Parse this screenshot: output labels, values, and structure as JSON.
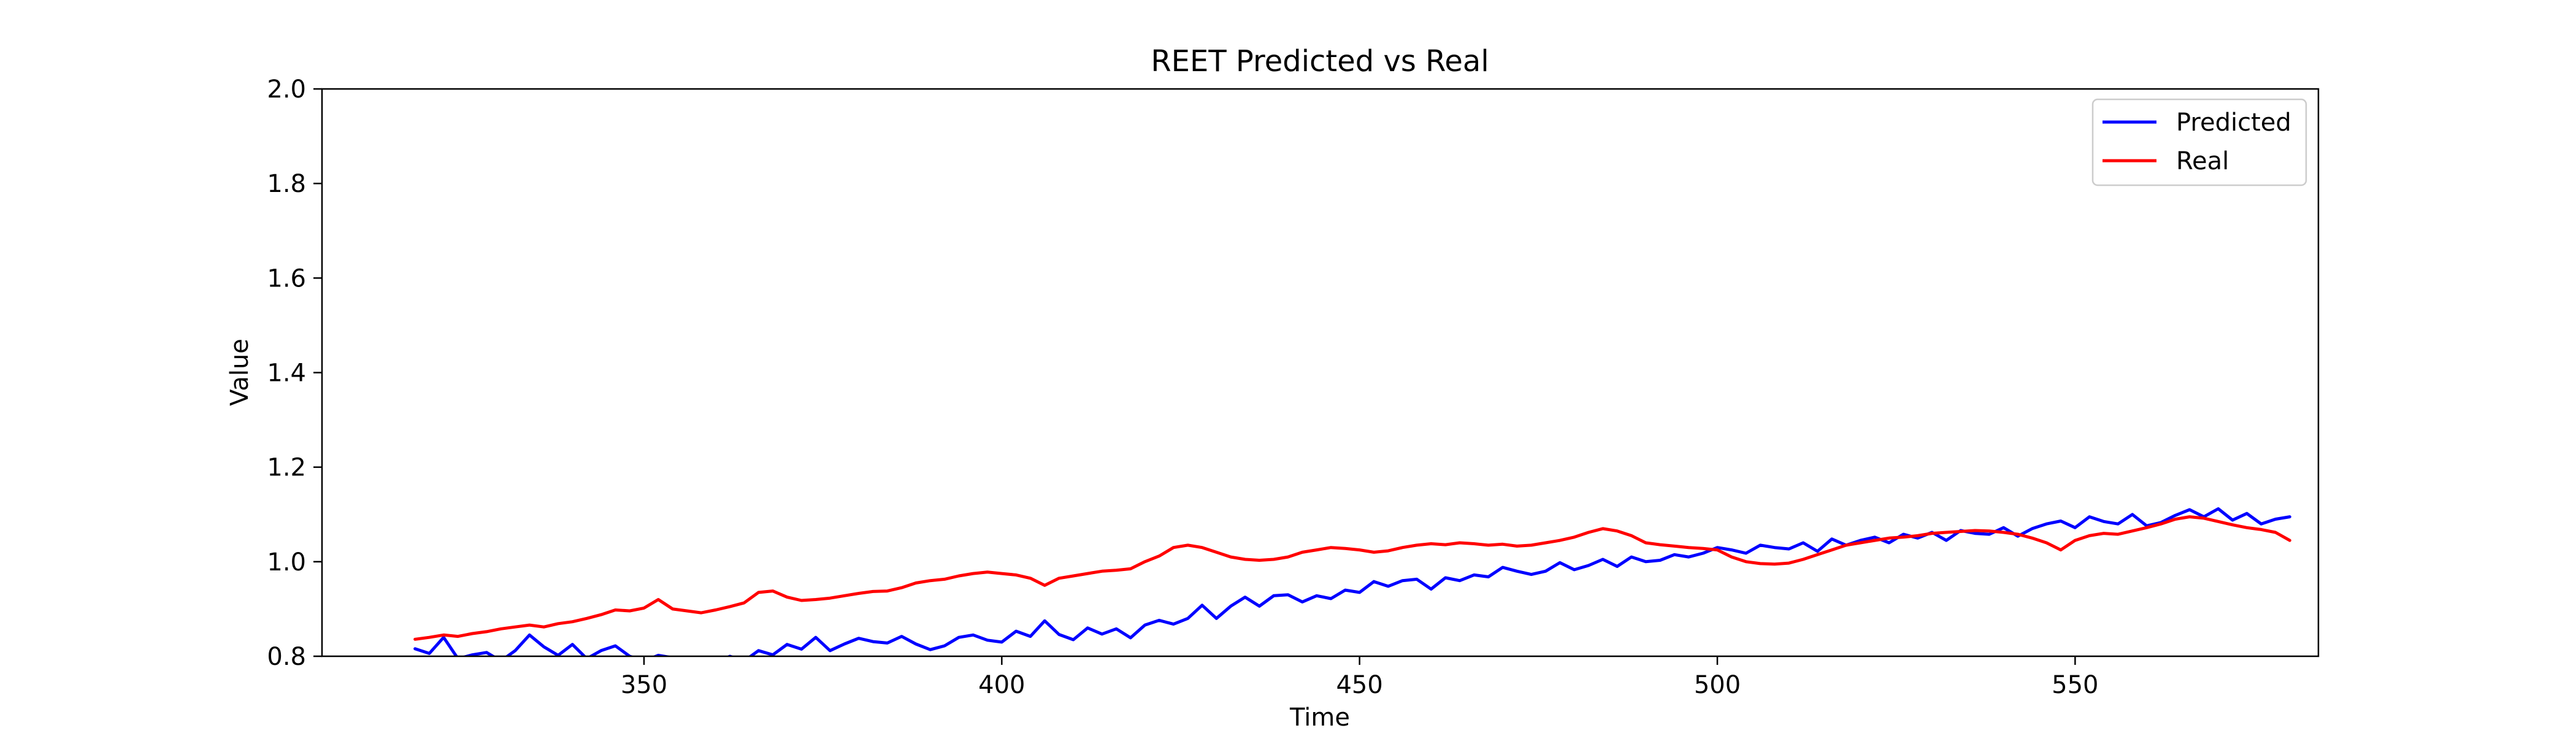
{
  "chart_data": {
    "type": "line",
    "title": "REET Predicted vs Real",
    "xlabel": "Time",
    "ylabel": "Value",
    "xlim": [
      305,
      584
    ],
    "ylim": [
      0.8,
      2.0
    ],
    "x_ticks": [
      350,
      400,
      450,
      500,
      550
    ],
    "y_ticks": [
      0.8,
      1.0,
      1.2,
      1.4,
      1.6,
      1.8,
      2.0
    ],
    "y_tick_labels": [
      "0.8",
      "1.0",
      "1.2",
      "1.4",
      "1.6",
      "1.8",
      "2.0"
    ],
    "legend_placement": "top-right",
    "grid": false,
    "x_start": 318,
    "x_end": 580,
    "series": [
      {
        "name": "Predicted",
        "color": "#0000ff",
        "points": [
          [
            318,
            0.816
          ],
          [
            320,
            0.806
          ],
          [
            322,
            0.84
          ],
          [
            324,
            0.795
          ],
          [
            326,
            0.803
          ],
          [
            328,
            0.808
          ],
          [
            330,
            0.79
          ],
          [
            332,
            0.812
          ],
          [
            334,
            0.845
          ],
          [
            336,
            0.82
          ],
          [
            338,
            0.802
          ],
          [
            340,
            0.825
          ],
          [
            342,
            0.795
          ],
          [
            344,
            0.812
          ],
          [
            346,
            0.822
          ],
          [
            348,
            0.8
          ],
          [
            350,
            0.79
          ],
          [
            352,
            0.802
          ],
          [
            354,
            0.797
          ],
          [
            356,
            0.787
          ],
          [
            358,
            0.798
          ],
          [
            360,
            0.786
          ],
          [
            362,
            0.8
          ],
          [
            364,
            0.79
          ],
          [
            366,
            0.812
          ],
          [
            368,
            0.803
          ],
          [
            370,
            0.825
          ],
          [
            372,
            0.815
          ],
          [
            374,
            0.84
          ],
          [
            376,
            0.812
          ],
          [
            378,
            0.826
          ],
          [
            380,
            0.838
          ],
          [
            382,
            0.831
          ],
          [
            384,
            0.828
          ],
          [
            386,
            0.842
          ],
          [
            388,
            0.826
          ],
          [
            390,
            0.814
          ],
          [
            392,
            0.822
          ],
          [
            394,
            0.84
          ],
          [
            396,
            0.845
          ],
          [
            398,
            0.834
          ],
          [
            400,
            0.83
          ],
          [
            402,
            0.853
          ],
          [
            404,
            0.842
          ],
          [
            406,
            0.875
          ],
          [
            408,
            0.846
          ],
          [
            410,
            0.835
          ],
          [
            412,
            0.86
          ],
          [
            414,
            0.847
          ],
          [
            416,
            0.858
          ],
          [
            418,
            0.839
          ],
          [
            420,
            0.866
          ],
          [
            422,
            0.876
          ],
          [
            424,
            0.868
          ],
          [
            426,
            0.88
          ],
          [
            428,
            0.908
          ],
          [
            430,
            0.88
          ],
          [
            432,
            0.906
          ],
          [
            434,
            0.925
          ],
          [
            436,
            0.906
          ],
          [
            438,
            0.928
          ],
          [
            440,
            0.93
          ],
          [
            442,
            0.915
          ],
          [
            444,
            0.928
          ],
          [
            446,
            0.922
          ],
          [
            448,
            0.94
          ],
          [
            450,
            0.935
          ],
          [
            452,
            0.958
          ],
          [
            454,
            0.948
          ],
          [
            456,
            0.96
          ],
          [
            458,
            0.963
          ],
          [
            460,
            0.942
          ],
          [
            462,
            0.966
          ],
          [
            464,
            0.96
          ],
          [
            466,
            0.972
          ],
          [
            468,
            0.968
          ],
          [
            470,
            0.988
          ],
          [
            472,
            0.98
          ],
          [
            474,
            0.973
          ],
          [
            476,
            0.98
          ],
          [
            478,
            0.998
          ],
          [
            480,
            0.983
          ],
          [
            482,
            0.992
          ],
          [
            484,
            1.005
          ],
          [
            486,
            0.99
          ],
          [
            488,
            1.01
          ],
          [
            490,
            1.0
          ],
          [
            492,
            1.003
          ],
          [
            494,
            1.015
          ],
          [
            496,
            1.01
          ],
          [
            498,
            1.018
          ],
          [
            500,
            1.03
          ],
          [
            502,
            1.025
          ],
          [
            504,
            1.018
          ],
          [
            506,
            1.035
          ],
          [
            508,
            1.03
          ],
          [
            510,
            1.027
          ],
          [
            512,
            1.04
          ],
          [
            514,
            1.022
          ],
          [
            516,
            1.048
          ],
          [
            518,
            1.035
          ],
          [
            520,
            1.045
          ],
          [
            522,
            1.052
          ],
          [
            524,
            1.04
          ],
          [
            526,
            1.058
          ],
          [
            528,
            1.05
          ],
          [
            530,
            1.062
          ],
          [
            532,
            1.045
          ],
          [
            534,
            1.066
          ],
          [
            536,
            1.06
          ],
          [
            538,
            1.058
          ],
          [
            540,
            1.072
          ],
          [
            542,
            1.054
          ],
          [
            544,
            1.07
          ],
          [
            546,
            1.08
          ],
          [
            548,
            1.086
          ],
          [
            550,
            1.072
          ],
          [
            552,
            1.095
          ],
          [
            554,
            1.085
          ],
          [
            556,
            1.08
          ],
          [
            558,
            1.1
          ],
          [
            560,
            1.076
          ],
          [
            562,
            1.083
          ],
          [
            564,
            1.098
          ],
          [
            566,
            1.11
          ],
          [
            568,
            1.095
          ],
          [
            570,
            1.112
          ],
          [
            572,
            1.088
          ],
          [
            574,
            1.102
          ],
          [
            576,
            1.08
          ],
          [
            578,
            1.09
          ],
          [
            580,
            1.095
          ]
        ]
      },
      {
        "name": "Real",
        "color": "#ff0000",
        "points": [
          [
            318,
            0.836
          ],
          [
            320,
            0.84
          ],
          [
            322,
            0.845
          ],
          [
            324,
            0.842
          ],
          [
            326,
            0.848
          ],
          [
            328,
            0.852
          ],
          [
            330,
            0.858
          ],
          [
            332,
            0.862
          ],
          [
            334,
            0.866
          ],
          [
            336,
            0.862
          ],
          [
            338,
            0.869
          ],
          [
            340,
            0.873
          ],
          [
            342,
            0.88
          ],
          [
            344,
            0.888
          ],
          [
            346,
            0.898
          ],
          [
            348,
            0.896
          ],
          [
            350,
            0.902
          ],
          [
            352,
            0.92
          ],
          [
            354,
            0.9
          ],
          [
            356,
            0.896
          ],
          [
            358,
            0.892
          ],
          [
            360,
            0.898
          ],
          [
            362,
            0.905
          ],
          [
            364,
            0.913
          ],
          [
            366,
            0.935
          ],
          [
            368,
            0.938
          ],
          [
            370,
            0.925
          ],
          [
            372,
            0.918
          ],
          [
            374,
            0.92
          ],
          [
            376,
            0.923
          ],
          [
            378,
            0.928
          ],
          [
            380,
            0.933
          ],
          [
            382,
            0.937
          ],
          [
            384,
            0.938
          ],
          [
            386,
            0.945
          ],
          [
            388,
            0.955
          ],
          [
            390,
            0.96
          ],
          [
            392,
            0.963
          ],
          [
            394,
            0.97
          ],
          [
            396,
            0.975
          ],
          [
            398,
            0.978
          ],
          [
            400,
            0.975
          ],
          [
            402,
            0.972
          ],
          [
            404,
            0.965
          ],
          [
            406,
            0.95
          ],
          [
            408,
            0.965
          ],
          [
            410,
            0.97
          ],
          [
            412,
            0.975
          ],
          [
            414,
            0.98
          ],
          [
            416,
            0.982
          ],
          [
            418,
            0.985
          ],
          [
            420,
            1.0
          ],
          [
            422,
            1.012
          ],
          [
            424,
            1.03
          ],
          [
            426,
            1.035
          ],
          [
            428,
            1.03
          ],
          [
            430,
            1.02
          ],
          [
            432,
            1.01
          ],
          [
            434,
            1.005
          ],
          [
            436,
            1.003
          ],
          [
            438,
            1.005
          ],
          [
            440,
            1.01
          ],
          [
            442,
            1.02
          ],
          [
            444,
            1.025
          ],
          [
            446,
            1.03
          ],
          [
            448,
            1.028
          ],
          [
            450,
            1.025
          ],
          [
            452,
            1.02
          ],
          [
            454,
            1.023
          ],
          [
            456,
            1.03
          ],
          [
            458,
            1.035
          ],
          [
            460,
            1.038
          ],
          [
            462,
            1.036
          ],
          [
            464,
            1.04
          ],
          [
            466,
            1.038
          ],
          [
            468,
            1.035
          ],
          [
            470,
            1.037
          ],
          [
            472,
            1.033
          ],
          [
            474,
            1.035
          ],
          [
            476,
            1.04
          ],
          [
            478,
            1.045
          ],
          [
            480,
            1.052
          ],
          [
            482,
            1.062
          ],
          [
            484,
            1.07
          ],
          [
            486,
            1.065
          ],
          [
            488,
            1.055
          ],
          [
            490,
            1.04
          ],
          [
            492,
            1.036
          ],
          [
            494,
            1.033
          ],
          [
            496,
            1.03
          ],
          [
            498,
            1.028
          ],
          [
            500,
            1.025
          ],
          [
            502,
            1.01
          ],
          [
            504,
            1.0
          ],
          [
            506,
            0.996
          ],
          [
            508,
            0.995
          ],
          [
            510,
            0.997
          ],
          [
            512,
            1.005
          ],
          [
            514,
            1.015
          ],
          [
            516,
            1.025
          ],
          [
            518,
            1.035
          ],
          [
            520,
            1.04
          ],
          [
            522,
            1.045
          ],
          [
            524,
            1.05
          ],
          [
            526,
            1.052
          ],
          [
            528,
            1.055
          ],
          [
            530,
            1.06
          ],
          [
            532,
            1.062
          ],
          [
            534,
            1.064
          ],
          [
            536,
            1.066
          ],
          [
            538,
            1.065
          ],
          [
            540,
            1.062
          ],
          [
            542,
            1.058
          ],
          [
            544,
            1.05
          ],
          [
            546,
            1.04
          ],
          [
            548,
            1.025
          ],
          [
            550,
            1.045
          ],
          [
            552,
            1.055
          ],
          [
            554,
            1.06
          ],
          [
            556,
            1.058
          ],
          [
            558,
            1.065
          ],
          [
            560,
            1.072
          ],
          [
            562,
            1.08
          ],
          [
            564,
            1.09
          ],
          [
            566,
            1.095
          ],
          [
            568,
            1.092
          ],
          [
            570,
            1.085
          ],
          [
            572,
            1.078
          ],
          [
            574,
            1.072
          ],
          [
            576,
            1.068
          ],
          [
            578,
            1.062
          ],
          [
            580,
            1.045
          ]
        ]
      }
    ]
  }
}
